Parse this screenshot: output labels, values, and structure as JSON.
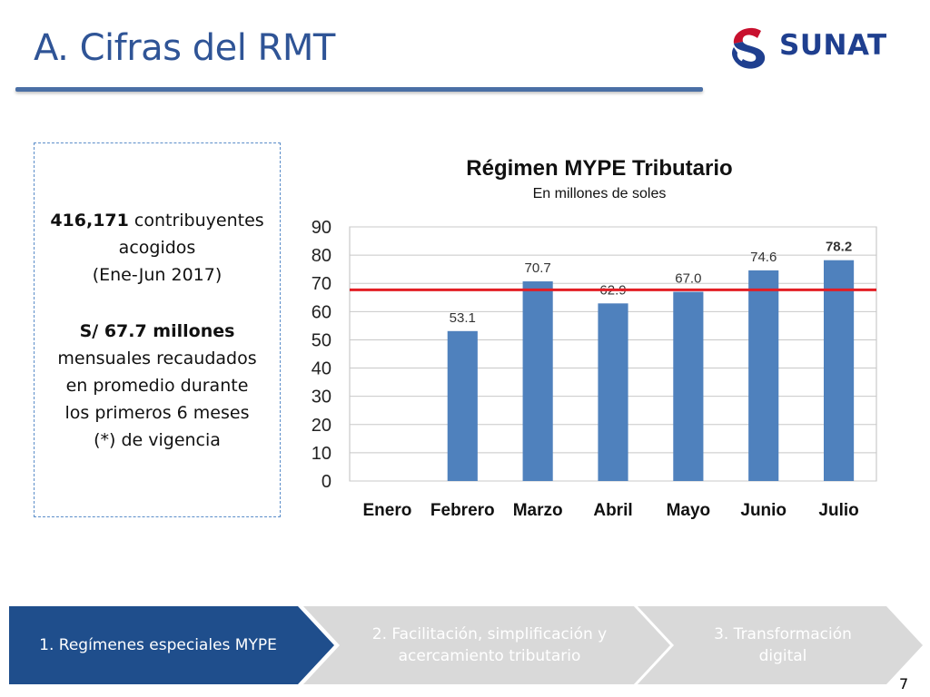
{
  "slide": {
    "title": "A. Cifras del RMT",
    "page_number": "7"
  },
  "logo": {
    "text": "SUNAT",
    "colors": {
      "red": "#c8102e",
      "blue": "#1f3f8f"
    }
  },
  "info_box": {
    "paragraph1": {
      "bold": "416,171",
      "line1_rest": " contribuyentes",
      "line2": "acogidos",
      "line3": "(Ene-Jun 2017)"
    },
    "paragraph2": {
      "bold": "S/ 67.7 millones",
      "line2": "mensuales recaudados",
      "line3": "en promedio durante",
      "line4": "los primeros 6 meses",
      "line5": "(*) de vigencia"
    }
  },
  "chart_data": {
    "type": "bar",
    "title": "Régimen MYPE Tributario",
    "subtitle": "En millones de soles",
    "categories": [
      "Enero",
      "Febrero",
      "Marzo",
      "Abril",
      "Mayo",
      "Junio",
      "Julio"
    ],
    "values": [
      null,
      53.1,
      70.7,
      62.9,
      67.0,
      74.6,
      78.2
    ],
    "data_labels": [
      "",
      "53.1",
      "70.7",
      "62.9",
      "67.0",
      "74.6",
      "78.2"
    ],
    "ylim": [
      0,
      90
    ],
    "yticks": [
      0,
      10,
      20,
      30,
      40,
      50,
      60,
      70,
      80,
      90
    ],
    "grid": true,
    "reference_line": 67.7,
    "bar_color": "#4f81bd",
    "reference_line_color": "#e31e24"
  },
  "nav": {
    "steps": [
      {
        "label": "1. Regímenes especiales MYPE",
        "active": true
      },
      {
        "label_line1": "2. Facilitación, simplificación y",
        "label_line2": "acercamiento tributario",
        "active": false
      },
      {
        "label_line1": "3. Transformación",
        "label_line2": "digital",
        "active": false
      }
    ],
    "colors": {
      "active": "#1f4e8c",
      "inactive": "#d9d9d9"
    }
  }
}
